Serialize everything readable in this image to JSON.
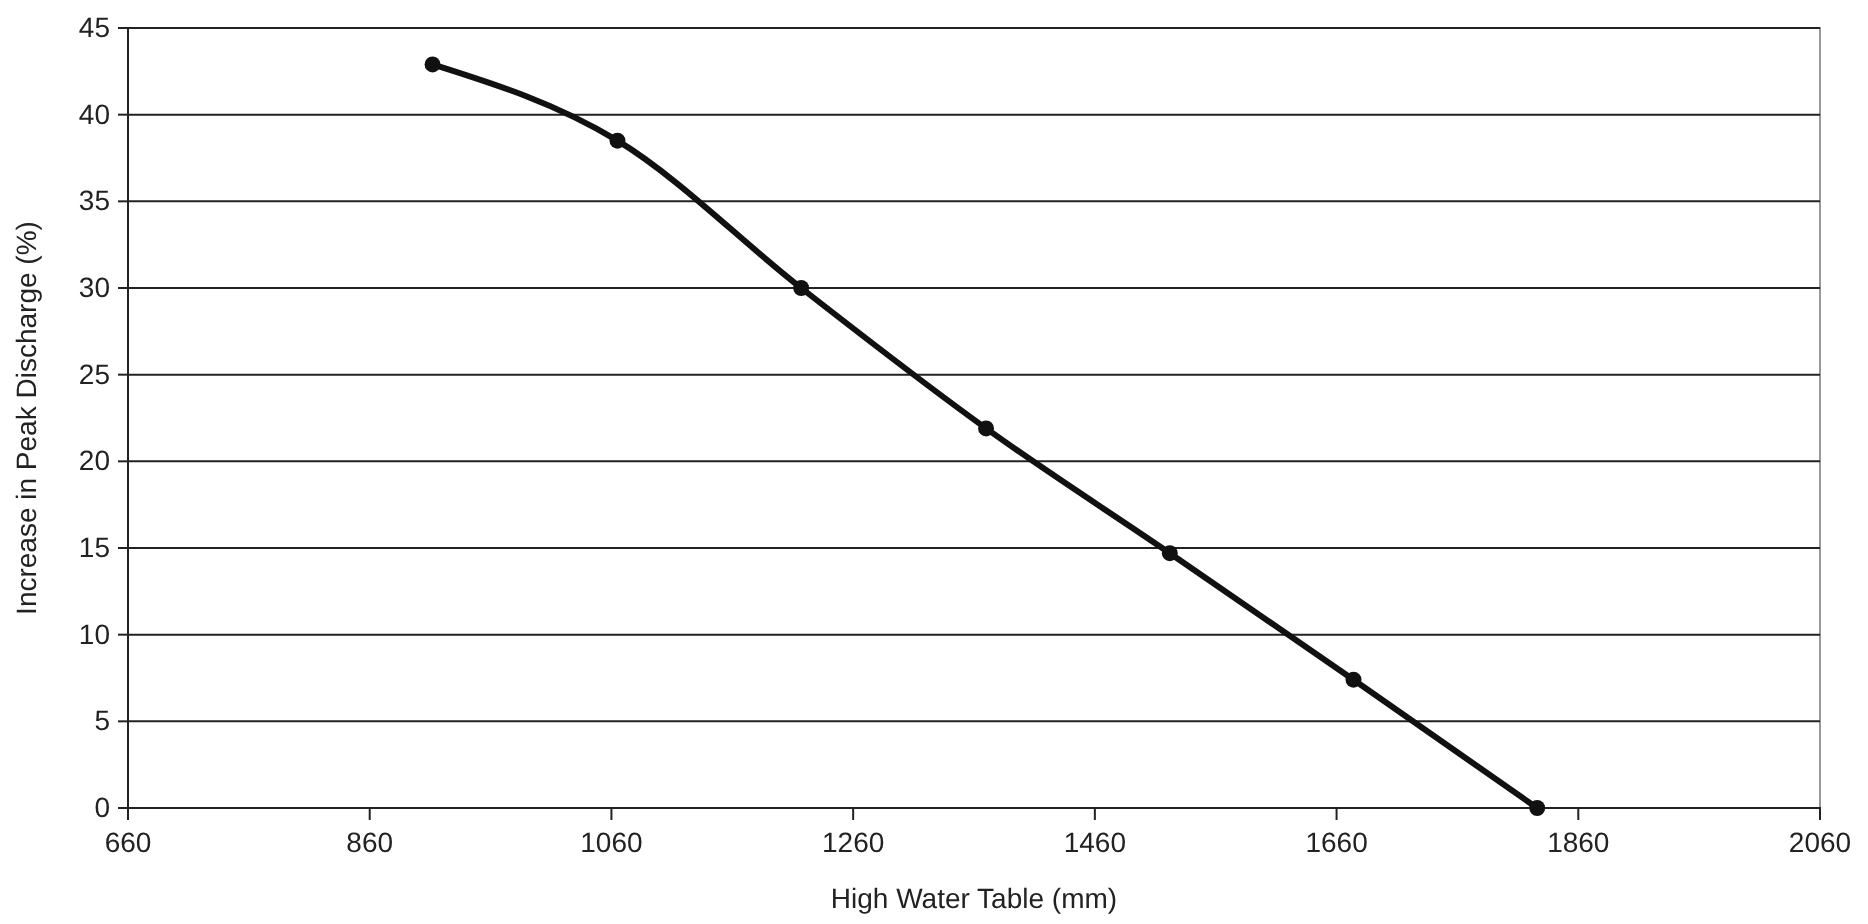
{
  "chart_data": {
    "type": "line",
    "xlabel": "High Water Table (mm)",
    "ylabel": "Increase in Peak Discharge (%)",
    "x": [
      912,
      1065,
      1217,
      1370,
      1522,
      1674,
      1826
    ],
    "series": [
      {
        "color": "#111111",
        "values": [
          42.9,
          38.5,
          30,
          21.9,
          14.7,
          7.4,
          0
        ]
      }
    ],
    "xlim": [
      660,
      2060
    ],
    "xticks": [
      660,
      860,
      1060,
      1260,
      1460,
      1660,
      1860,
      2060
    ],
    "ylim": [
      0,
      45
    ],
    "yticks": [
      0,
      5,
      10,
      15,
      20,
      25,
      30,
      35,
      40,
      45
    ],
    "grid": "y",
    "marker": "circle",
    "line_style": "solid"
  }
}
